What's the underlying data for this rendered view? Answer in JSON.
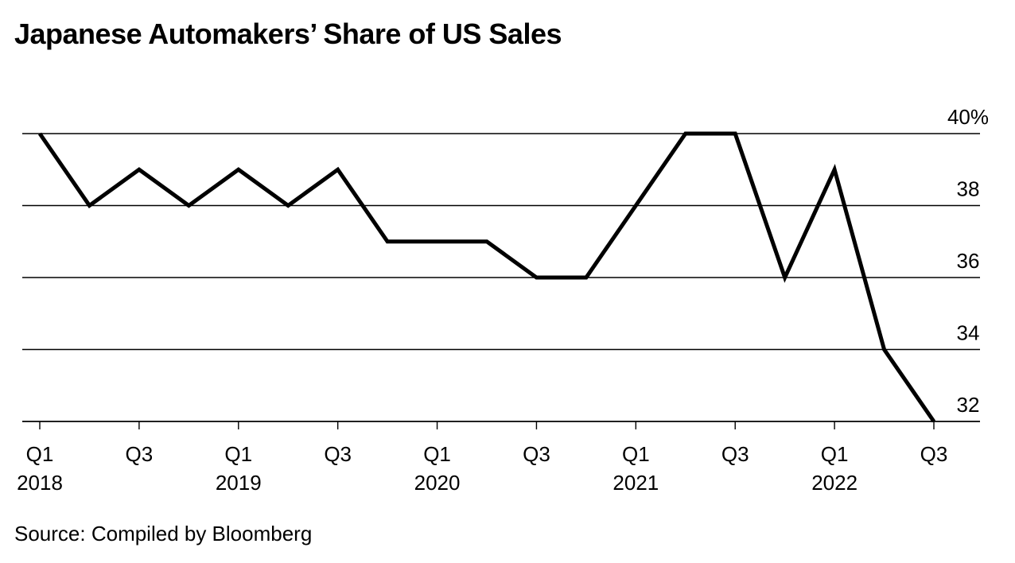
{
  "chart_data": {
    "type": "line",
    "title": "Japanese Automakers’ Share of US Sales",
    "source": "Source: Compiled by Bloomberg",
    "xlabel": "",
    "ylabel": "",
    "ylim": [
      32,
      40
    ],
    "y_ticks": [
      {
        "value": 40,
        "label": "40%"
      },
      {
        "value": 38,
        "label": "38"
      },
      {
        "value": 36,
        "label": "36"
      },
      {
        "value": 34,
        "label": "34"
      },
      {
        "value": 32,
        "label": "32"
      }
    ],
    "categories": [
      "Q1 2018",
      "Q2 2018",
      "Q3 2018",
      "Q4 2018",
      "Q1 2019",
      "Q2 2019",
      "Q3 2019",
      "Q4 2019",
      "Q1 2020",
      "Q2 2020",
      "Q3 2020",
      "Q4 2020",
      "Q1 2021",
      "Q2 2021",
      "Q3 2021",
      "Q4 2021",
      "Q1 2022",
      "Q2 2022",
      "Q3 2022"
    ],
    "x_tick_labels": [
      {
        "index": 0,
        "quarter": "Q1",
        "year": "2018"
      },
      {
        "index": 2,
        "quarter": "Q3",
        "year": ""
      },
      {
        "index": 4,
        "quarter": "Q1",
        "year": "2019"
      },
      {
        "index": 6,
        "quarter": "Q3",
        "year": ""
      },
      {
        "index": 8,
        "quarter": "Q1",
        "year": "2020"
      },
      {
        "index": 10,
        "quarter": "Q3",
        "year": ""
      },
      {
        "index": 12,
        "quarter": "Q1",
        "year": "2021"
      },
      {
        "index": 14,
        "quarter": "Q3",
        "year": ""
      },
      {
        "index": 16,
        "quarter": "Q1",
        "year": "2022"
      },
      {
        "index": 18,
        "quarter": "Q3",
        "year": ""
      }
    ],
    "series": [
      {
        "name": "Japanese automakers' share of US sales",
        "color": "#000000",
        "values": [
          40,
          38,
          39,
          38,
          39,
          38,
          39,
          37,
          37,
          37,
          36,
          36,
          38,
          40,
          40,
          36,
          39,
          34,
          32
        ]
      }
    ],
    "grid": true,
    "legend": "none"
  }
}
